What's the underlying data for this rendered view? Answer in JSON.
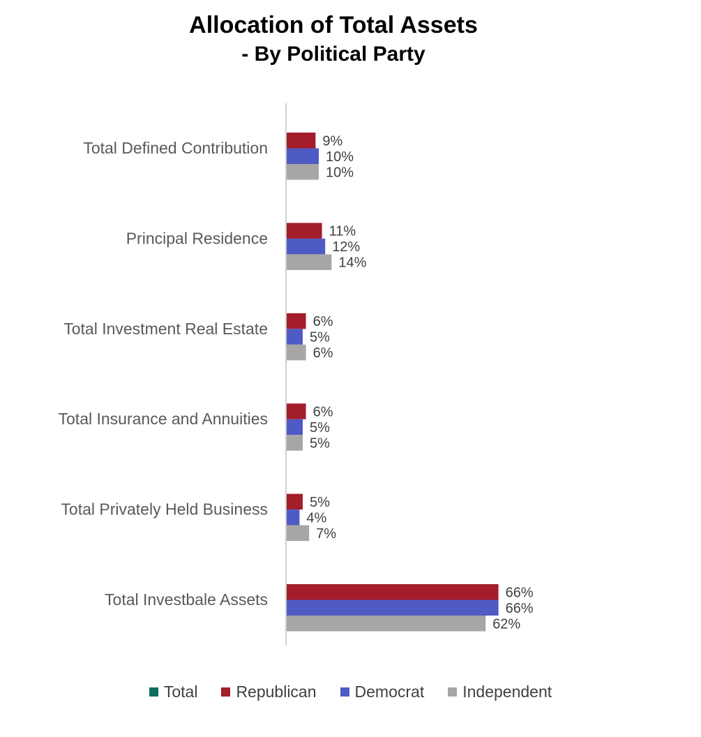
{
  "chart_data": {
    "type": "bar",
    "orientation": "horizontal",
    "title": "Allocation of Total Assets",
    "subtitle": "- By Political Party",
    "categories": [
      "Total Defined Contribution",
      "Principal Residence",
      "Total Investment Real Estate",
      "Total Insurance and Annuities",
      "Total Privately Held Business",
      "Total Investbale Assets"
    ],
    "series": [
      {
        "name": "Total",
        "color": "#0f6e5f",
        "values": [
          null,
          null,
          null,
          null,
          null,
          null
        ],
        "labels": [
          "",
          "",
          "",
          "",
          "",
          ""
        ]
      },
      {
        "name": "Republican",
        "color": "#a31d2a",
        "values": [
          9,
          11,
          6,
          6,
          5,
          66
        ],
        "labels": [
          "9%",
          "11%",
          "6%",
          "6%",
          "5%",
          "66%"
        ]
      },
      {
        "name": "Democrat",
        "color": "#4f5bc4",
        "values": [
          10,
          12,
          5,
          5,
          4,
          66
        ],
        "labels": [
          "10%",
          "12%",
          "5%",
          "5%",
          "4%",
          "66%"
        ]
      },
      {
        "name": "Independent",
        "color": "#a6a6a6",
        "values": [
          10,
          14,
          6,
          5,
          7,
          62
        ],
        "labels": [
          "10%",
          "14%",
          "6%",
          "5%",
          "7%",
          "62%"
        ]
      }
    ],
    "xlim": [
      0,
      100
    ],
    "grid": false,
    "legend_position": "bottom"
  }
}
